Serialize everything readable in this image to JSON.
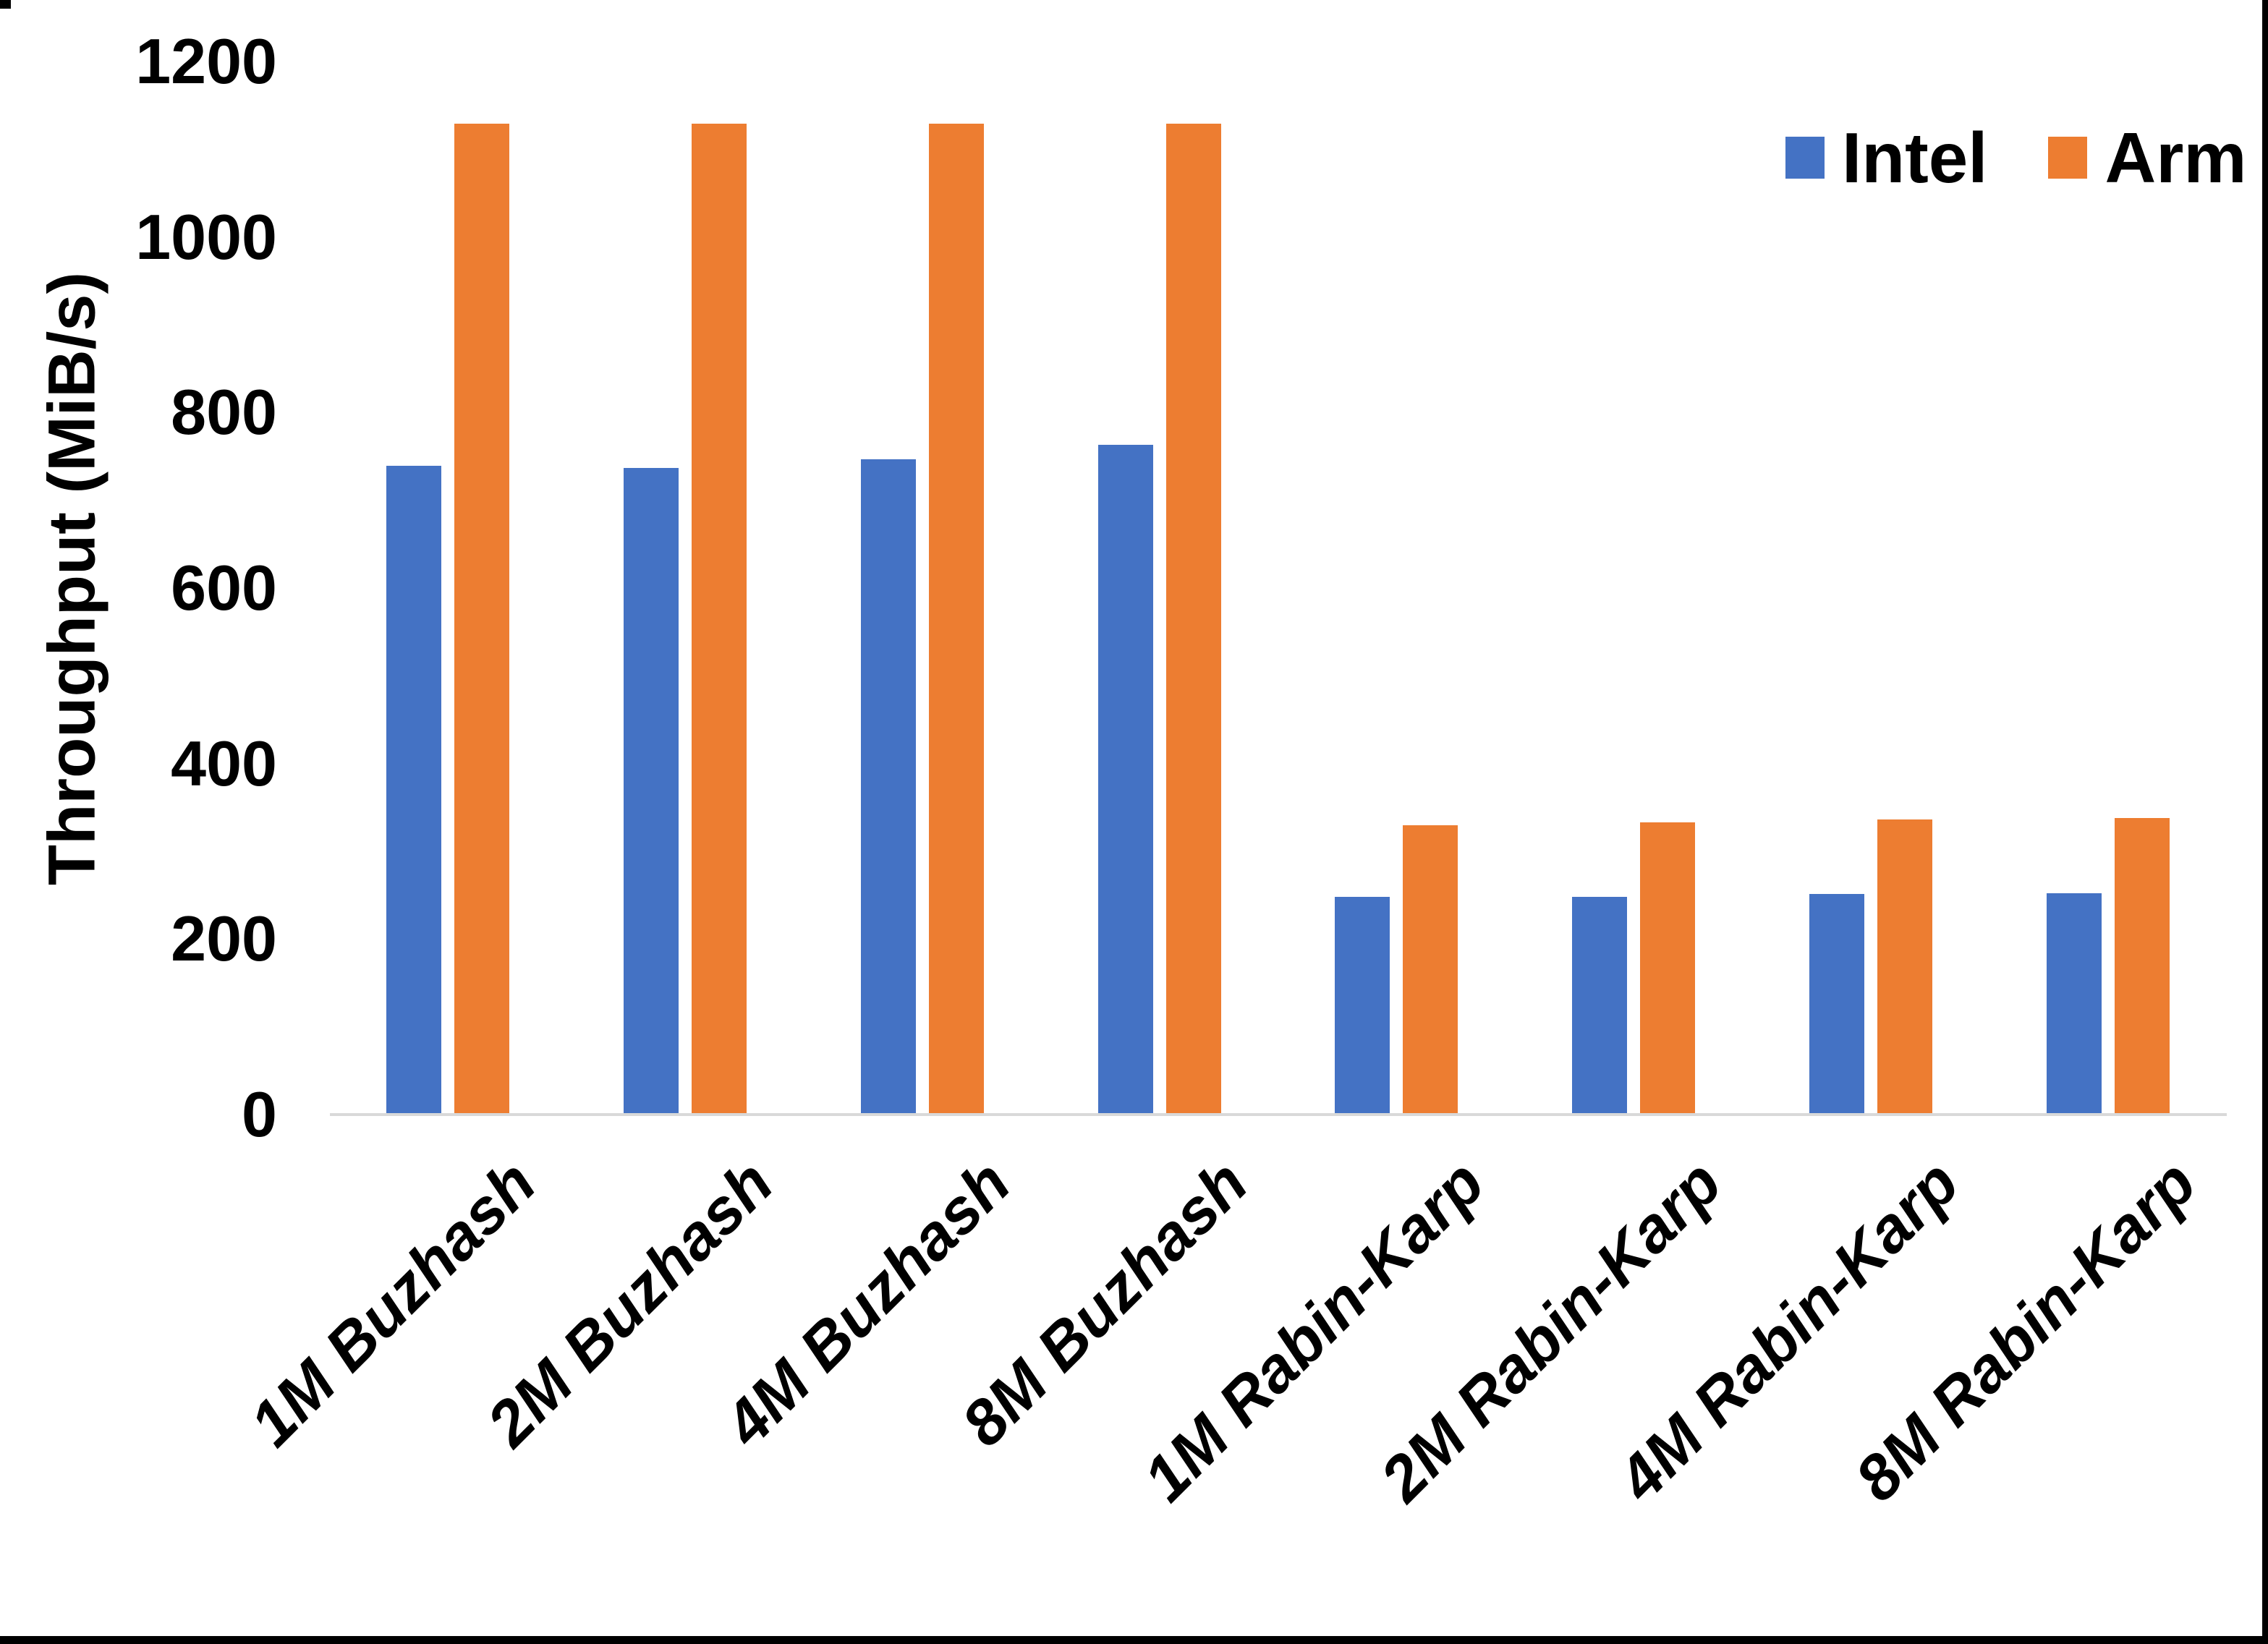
{
  "page": {
    "background": "#FFFFFF",
    "frame_color": "#000000"
  },
  "chart_data": {
    "type": "bar",
    "title": "",
    "xlabel": "",
    "ylabel": "Throughput (MiB/s)",
    "categories": [
      "1M Buzhash",
      "2M Buzhash",
      "4M Buzhash",
      "8M Buzhash",
      "1M Rabin-Karp",
      "2M Rabin-Karp",
      "4M Rabin-Karp",
      "8M Rabin-Karp"
    ],
    "series": [
      {
        "name": "Intel",
        "color": "#4472C4",
        "values": [
          739,
          737,
          747,
          763,
          248,
          248,
          251,
          252
        ]
      },
      {
        "name": "Arm",
        "color": "#ED7D31",
        "values": [
          1129,
          1129,
          1129,
          1129,
          330,
          333,
          336,
          338
        ]
      }
    ],
    "ylim": [
      0,
      1200
    ],
    "yticks": [
      0,
      200,
      400,
      600,
      800,
      1000,
      1200
    ],
    "grid": false,
    "legend_position": "top-right",
    "axis_line_color": "#D9D9D9",
    "text_color": "#000000"
  }
}
